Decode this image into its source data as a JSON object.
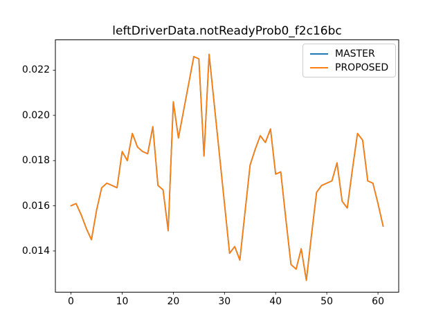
{
  "figure": {
    "background": "#ffffff",
    "frame_color": "#000000"
  },
  "legend": {
    "position": "upper right",
    "border_color": "#cccccc",
    "entries": [
      {
        "label": "MASTER",
        "color": "#1f77b4"
      },
      {
        "label": "PROPOSED",
        "color": "#ff7f0e"
      }
    ]
  },
  "chart_data": {
    "type": "line",
    "title": "leftDriverData.notReadyProb0_f2c16bc",
    "xlabel": "",
    "ylabel": "",
    "grid": false,
    "legend_position": "upper right",
    "lines_overlap": true,
    "xlim": [
      -3.05,
      64.05
    ],
    "ylim": [
      0.01218,
      0.02334
    ],
    "xticks": [
      0,
      10,
      20,
      30,
      40,
      50,
      60
    ],
    "ytick_labels": [
      "0.014",
      "0.016",
      "0.018",
      "0.020",
      "0.022"
    ],
    "yticks": [
      0.014,
      0.016,
      0.018,
      0.02,
      0.022
    ],
    "x": [
      0,
      1,
      2,
      3,
      4,
      5,
      6,
      7,
      8,
      9,
      10,
      11,
      12,
      13,
      14,
      15,
      16,
      17,
      18,
      19,
      20,
      21,
      22,
      23,
      24,
      25,
      26,
      27,
      28,
      29,
      30,
      31,
      32,
      33,
      34,
      35,
      36,
      37,
      38,
      39,
      40,
      41,
      42,
      43,
      44,
      45,
      46,
      47,
      48,
      49,
      50,
      51,
      52,
      53,
      54,
      55,
      56,
      57,
      58,
      59,
      60,
      61
    ],
    "series": [
      {
        "name": "MASTER",
        "color": "#1f77b4",
        "values": [
          0.016,
          0.0161,
          0.0156,
          0.015,
          0.0145,
          0.0158,
          0.0168,
          0.017,
          0.0169,
          0.0168,
          0.0184,
          0.018,
          0.0192,
          0.0186,
          0.0184,
          0.0183,
          0.0195,
          0.0169,
          0.0167,
          0.0149,
          0.0206,
          0.019,
          0.0202,
          0.0214,
          0.0226,
          0.0225,
          0.0182,
          0.0227,
          0.0205,
          0.0183,
          0.0161,
          0.0139,
          0.0142,
          0.0136,
          0.0157,
          0.0178,
          0.0185,
          0.0191,
          0.0188,
          0.0194,
          0.0174,
          0.0175,
          0.0154,
          0.0134,
          0.0132,
          0.0141,
          0.0127,
          0.0147,
          0.0166,
          0.0169,
          0.017,
          0.0171,
          0.0179,
          0.0162,
          0.0159,
          0.0176,
          0.0192,
          0.0189,
          0.0171,
          0.017,
          0.0161,
          0.0151
        ]
      },
      {
        "name": "PROPOSED",
        "color": "#ff7f0e",
        "values": [
          0.016,
          0.0161,
          0.0156,
          0.015,
          0.0145,
          0.0158,
          0.0168,
          0.017,
          0.0169,
          0.0168,
          0.0184,
          0.018,
          0.0192,
          0.0186,
          0.0184,
          0.0183,
          0.0195,
          0.0169,
          0.0167,
          0.0149,
          0.0206,
          0.019,
          0.0202,
          0.0214,
          0.0226,
          0.0225,
          0.0182,
          0.0227,
          0.0205,
          0.0183,
          0.0161,
          0.0139,
          0.0142,
          0.0136,
          0.0157,
          0.0178,
          0.0185,
          0.0191,
          0.0188,
          0.0194,
          0.0174,
          0.0175,
          0.0154,
          0.0134,
          0.0132,
          0.0141,
          0.0127,
          0.0147,
          0.0166,
          0.0169,
          0.017,
          0.0171,
          0.0179,
          0.0162,
          0.0159,
          0.0176,
          0.0192,
          0.0189,
          0.0171,
          0.017,
          0.0161,
          0.0151
        ]
      }
    ]
  }
}
